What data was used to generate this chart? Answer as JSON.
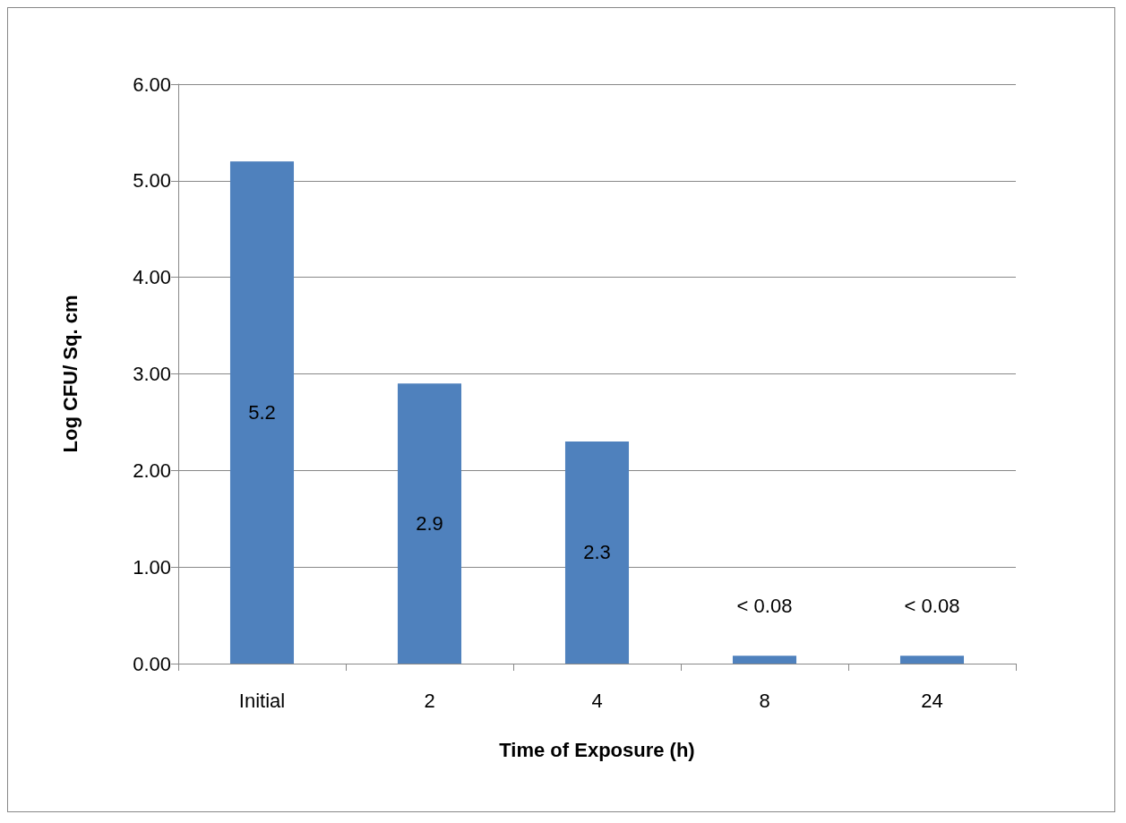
{
  "chart_data": {
    "type": "bar",
    "xlabel": "Time of Exposure (h)",
    "ylabel": "Log CFU/ Sq. cm",
    "categories": [
      "Initial",
      "2",
      "4",
      "8",
      "24"
    ],
    "values": [
      5.2,
      2.9,
      2.3,
      0.08,
      0.08
    ],
    "value_labels": [
      "5.2",
      "2.9",
      "2.3",
      "< 0.08",
      "< 0.08"
    ],
    "color": "#4f81bd",
    "ylim": [
      0,
      6
    ],
    "yticks": [
      {
        "value": 0,
        "label": "0.00"
      },
      {
        "value": 1,
        "label": "1.00"
      },
      {
        "value": 2,
        "label": "2.00"
      },
      {
        "value": 3,
        "label": "3.00"
      },
      {
        "value": 4,
        "label": "4.00"
      },
      {
        "value": 5,
        "label": "5.00"
      },
      {
        "value": 6,
        "label": "6.00"
      }
    ],
    "grid": "y"
  }
}
